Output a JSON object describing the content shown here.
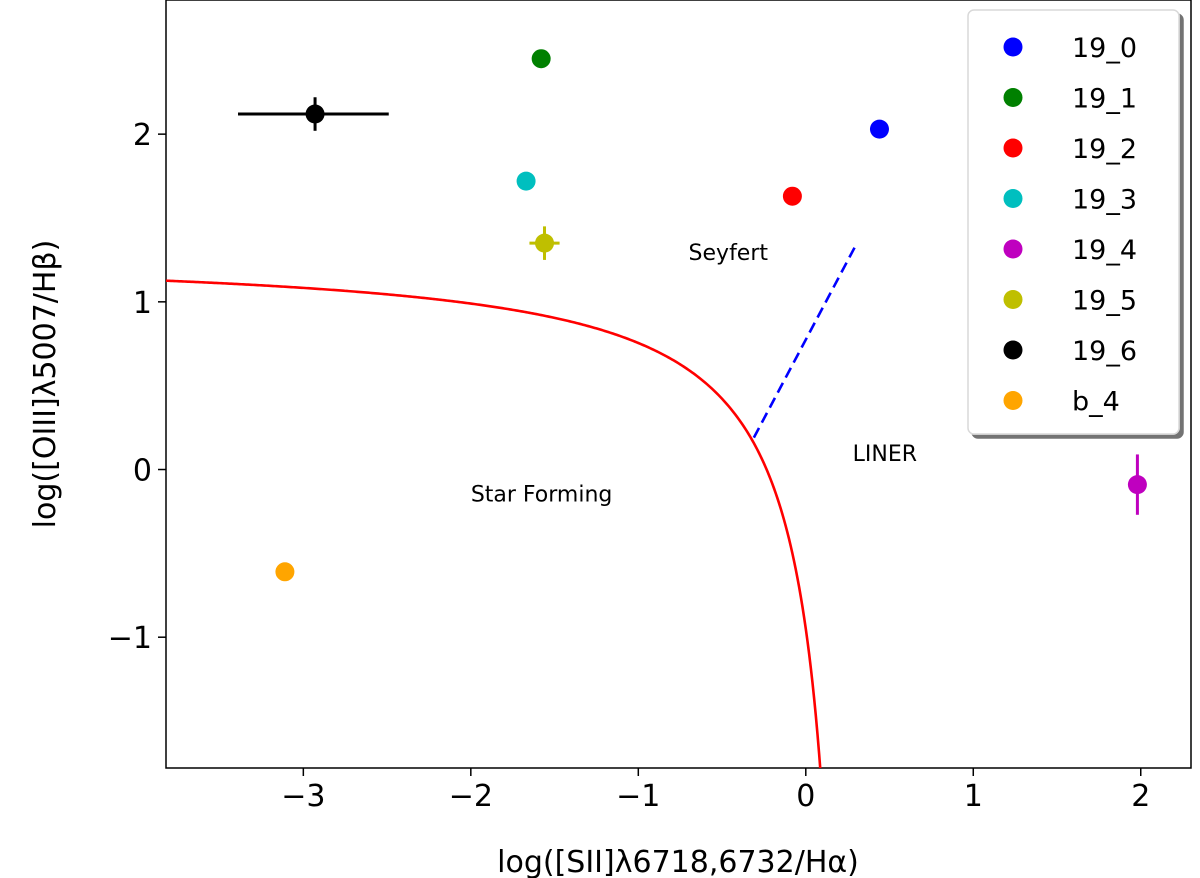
{
  "chart_data": {
    "type": "scatter",
    "xlabel": "log([SII]λ6718,6732/Hα)",
    "ylabel": "log([OIII]λ5007/Hβ)",
    "xlim": [
      -3.82,
      2.3
    ],
    "ylim": [
      -1.78,
      2.8
    ],
    "xticks": [
      -3,
      -2,
      -1,
      0,
      1,
      2
    ],
    "xtick_labels": [
      "−3",
      "−2",
      "−1",
      "0",
      "1",
      "2"
    ],
    "yticks": [
      -1,
      0,
      1,
      2
    ],
    "ytick_labels": [
      "−1",
      "0",
      "1",
      "2"
    ],
    "grid": false,
    "legend_position": "top-right",
    "series": [
      {
        "name": "19_0",
        "color": "#0000ff",
        "x": 0.44,
        "y": 2.03
      },
      {
        "name": "19_1",
        "color": "#008000",
        "x": -1.58,
        "y": 2.45
      },
      {
        "name": "19_2",
        "color": "#ff0000",
        "x": -0.08,
        "y": 1.63
      },
      {
        "name": "19_3",
        "color": "#00bfbf",
        "x": -1.67,
        "y": 1.72
      },
      {
        "name": "19_4",
        "color": "#bf00bf",
        "x": 1.98,
        "y": -0.09,
        "yerr": 0.18
      },
      {
        "name": "19_5",
        "color": "#bfbf00",
        "x": -1.56,
        "y": 1.35,
        "xerr": 0.09,
        "yerr": 0.1
      },
      {
        "name": "19_6",
        "color": "#000000",
        "x": -2.93,
        "y": 2.12,
        "xerr": [
          0.46,
          0.44
        ],
        "yerr": 0.1
      },
      {
        "name": "b_4",
        "color": "#ffa500",
        "x": -3.11,
        "y": -0.61
      }
    ],
    "kewley_curve": {
      "color": "#ff0000",
      "style": "solid",
      "formula": "0.72/(x-0.32)+1.30"
    },
    "seyfert_liner_line": {
      "color": "#0000ff",
      "style": "dashed",
      "x": [
        -0.31,
        0.3
      ],
      "y": [
        0.19,
        1.34
      ]
    },
    "annotations": [
      {
        "text": "Seyfert",
        "x": -0.7,
        "y": 1.25
      },
      {
        "text": "LINER",
        "x": 0.28,
        "y": 0.05
      },
      {
        "text": "Star Forming",
        "x": -2.0,
        "y": -0.19
      }
    ]
  }
}
